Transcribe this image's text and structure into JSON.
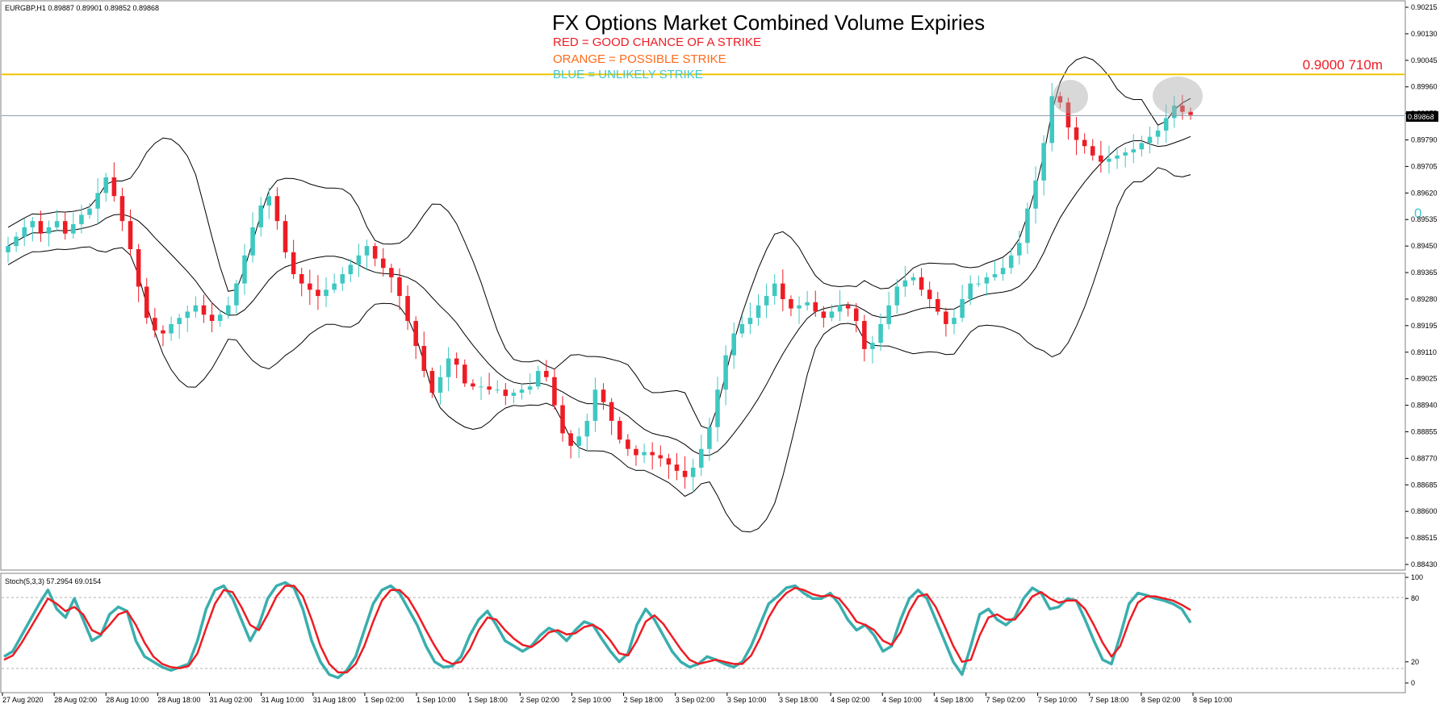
{
  "window": {
    "symbol_info": "EURGBP,H1  0.89887 0.89901 0.89852 0.89868"
  },
  "header": {
    "title": "FX Options Market Combined Volume Expiries",
    "legend_red": "RED = GOOD CHANCE OF A STRIKE",
    "legend_orange": "ORANGE = POSSIBLE STRIKE",
    "legend_blue": "BLUE = UNLIKELY STRIKE"
  },
  "annotations": {
    "expiry_label": "0.9000 710m",
    "side_label": "0.",
    "current_price": "0.89868"
  },
  "colors": {
    "bull": "#3ec8c2",
    "bear": "#ee1c24",
    "expiry_line": "#f2c500",
    "red_text": "#ee1c24",
    "orange_text": "#ff6a1a",
    "blue_text": "#40c8d0",
    "stoch_main": "#3aaeae",
    "stoch_signal": "#ee1c24"
  },
  "chart_data": [
    {
      "type": "candlestick",
      "symbol": "EURGBP",
      "timeframe": "H1",
      "ohlc": {
        "open": 0.89887,
        "high": 0.89901,
        "low": 0.89852,
        "close": 0.89868
      },
      "y_axis_ticks": [
        "0.90215",
        "0.90130",
        "0.90045",
        "0.89960",
        "0.89875",
        "0.89790",
        "0.89705",
        "0.89620",
        "0.89535",
        "0.89450",
        "0.89365",
        "0.89280",
        "0.89195",
        "0.89110",
        "0.89025",
        "0.88940",
        "0.88855",
        "0.88770",
        "0.88685",
        "0.88600",
        "0.88515",
        "0.88430"
      ],
      "ylim": [
        0.8843,
        0.90215
      ],
      "x_axis_ticks": [
        "27 Aug 2020",
        "28 Aug 02:00",
        "28 Aug 10:00",
        "28 Aug 18:00",
        "31 Aug 02:00",
        "31 Aug 10:00",
        "31 Aug 18:00",
        "1 Sep 02:00",
        "1 Sep 10:00",
        "1 Sep 18:00",
        "2 Sep 02:00",
        "2 Sep 10:00",
        "2 Sep 18:00",
        "3 Sep 02:00",
        "3 Sep 10:00",
        "3 Sep 18:00",
        "4 Sep 02:00",
        "4 Sep 10:00",
        "4 Sep 18:00",
        "7 Sep 02:00",
        "7 Sep 10:00",
        "7 Sep 18:00",
        "8 Sep 02:00",
        "8 Sep 10:00"
      ],
      "current_price": 0.89868,
      "horizontal_lines": [
        {
          "price": 0.9,
          "label": "0.9000 710m",
          "color": "#f2c500"
        }
      ],
      "indicators": [
        "Bollinger Bands"
      ],
      "close_path": [
        0.8945,
        0.8948,
        0.8951,
        0.8953,
        0.8949,
        0.8951,
        0.8953,
        0.8949,
        0.8952,
        0.8955,
        0.8957,
        0.8962,
        0.8967,
        0.8961,
        0.8953,
        0.8944,
        0.8932,
        0.8922,
        0.8918,
        0.8917,
        0.892,
        0.8922,
        0.8924,
        0.8926,
        0.8923,
        0.8921,
        0.8923,
        0.8926,
        0.8933,
        0.8942,
        0.8951,
        0.8958,
        0.8961,
        0.8953,
        0.8943,
        0.8936,
        0.8933,
        0.8931,
        0.8929,
        0.8931,
        0.8933,
        0.8936,
        0.8939,
        0.8942,
        0.8945,
        0.8941,
        0.8938,
        0.8935,
        0.8929,
        0.8921,
        0.8913,
        0.8905,
        0.8898,
        0.8903,
        0.8909,
        0.8907,
        0.8901,
        0.89,
        0.89,
        0.8899,
        0.8899,
        0.8897,
        0.8898,
        0.8899,
        0.89,
        0.8905,
        0.8903,
        0.8894,
        0.8885,
        0.8881,
        0.8884,
        0.8889,
        0.8899,
        0.8895,
        0.8889,
        0.8883,
        0.888,
        0.8878,
        0.8879,
        0.8878,
        0.8877,
        0.8875,
        0.8873,
        0.8871,
        0.8874,
        0.888,
        0.8887,
        0.8899,
        0.891,
        0.8917,
        0.892,
        0.8922,
        0.8926,
        0.8929,
        0.8933,
        0.8928,
        0.8925,
        0.8926,
        0.8927,
        0.8924,
        0.8922,
        0.8924,
        0.8926,
        0.8925,
        0.8921,
        0.8912,
        0.8914,
        0.892,
        0.8926,
        0.8932,
        0.8934,
        0.8935,
        0.8931,
        0.8928,
        0.8924,
        0.892,
        0.8922,
        0.8928,
        0.8933,
        0.8933,
        0.8935,
        0.8936,
        0.8938,
        0.8942,
        0.8946,
        0.8957,
        0.8966,
        0.8978,
        0.8993,
        0.8991,
        0.8983,
        0.8979,
        0.8977,
        0.8974,
        0.8972,
        0.8973,
        0.8974,
        0.8975,
        0.8976,
        0.8978,
        0.898,
        0.8982,
        0.8986,
        0.899,
        0.8988,
        0.8987
      ]
    },
    {
      "type": "line",
      "indicator": "Stochastic",
      "label": "Stoch(5,3,3) 57.2954 69.0154",
      "main_value": 57.2954,
      "signal_value": 69.0154,
      "ylim": [
        0,
        100
      ],
      "y_axis_ticks": [
        "100",
        "80",
        "20",
        "0"
      ],
      "levels": [
        80,
        20
      ],
      "series": [
        {
          "color": "#3aaeae",
          "values": [
            25,
            30,
            45,
            60,
            75,
            88,
            70,
            62,
            80,
            60,
            40,
            45,
            65,
            72,
            68,
            40,
            25,
            20,
            15,
            12,
            15,
            18,
            40,
            70,
            88,
            92,
            80,
            60,
            40,
            55,
            80,
            92,
            95,
            90,
            70,
            40,
            20,
            8,
            5,
            12,
            25,
            50,
            75,
            88,
            92,
            85,
            70,
            55,
            35,
            20,
            15,
            16,
            25,
            45,
            60,
            68,
            55,
            40,
            35,
            30,
            35,
            45,
            52,
            48,
            40,
            50,
            58,
            55,
            42,
            30,
            20,
            28,
            55,
            70,
            60,
            45,
            30,
            20,
            15,
            18,
            25,
            22,
            18,
            15,
            20,
            35,
            55,
            75,
            82,
            90,
            92,
            85,
            80,
            80,
            85,
            75,
            60,
            50,
            55,
            45,
            30,
            35,
            60,
            80,
            88,
            80,
            60,
            40,
            20,
            8,
            35,
            65,
            70,
            60,
            55,
            62,
            80,
            90,
            85,
            70,
            72,
            80,
            78,
            60,
            40,
            22,
            18,
            45,
            75,
            85,
            83,
            80,
            78,
            75,
            70,
            57
          ]
        },
        {
          "color": "#ee1c24",
          "values": [
            22,
            26,
            38,
            52,
            66,
            80,
            75,
            68,
            72,
            65,
            50,
            46,
            55,
            65,
            68,
            55,
            38,
            25,
            18,
            15,
            14,
            16,
            28,
            52,
            75,
            88,
            86,
            72,
            55,
            50,
            65,
            82,
            92,
            92,
            82,
            60,
            35,
            18,
            10,
            10,
            18,
            35,
            58,
            78,
            88,
            88,
            80,
            66,
            50,
            35,
            22,
            18,
            20,
            32,
            50,
            62,
            60,
            50,
            42,
            36,
            34,
            40,
            48,
            50,
            46,
            47,
            53,
            55,
            50,
            40,
            28,
            26,
            40,
            58,
            64,
            56,
            44,
            32,
            22,
            18,
            20,
            22,
            20,
            18,
            18,
            26,
            42,
            62,
            76,
            85,
            90,
            88,
            84,
            82,
            83,
            80,
            70,
            58,
            55,
            50,
            40,
            36,
            48,
            68,
            82,
            84,
            72,
            54,
            35,
            20,
            22,
            45,
            62,
            65,
            60,
            60,
            70,
            82,
            86,
            80,
            76,
            78,
            78,
            70,
            55,
            38,
            25,
            35,
            58,
            76,
            82,
            82,
            80,
            78,
            74,
            69
          ]
        }
      ]
    }
  ]
}
